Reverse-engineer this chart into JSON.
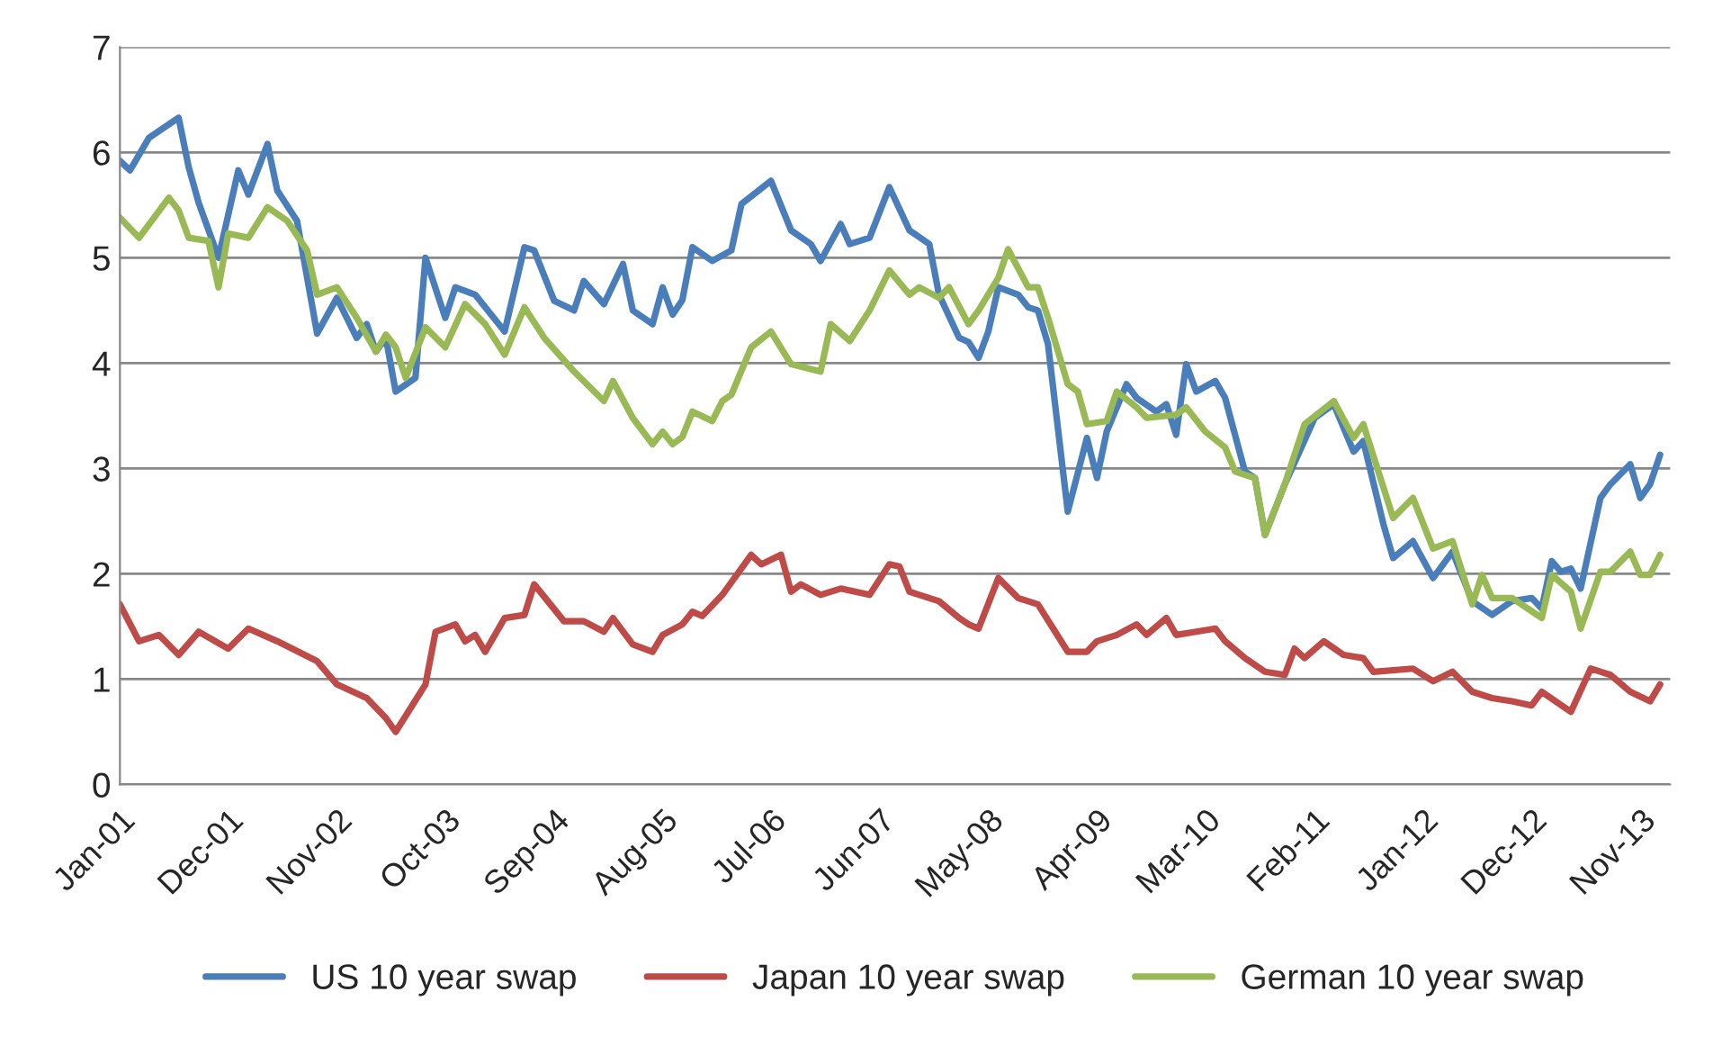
{
  "chart_data": {
    "type": "line",
    "xlim": [
      "2001-01",
      "2014-02"
    ],
    "xticks": [
      {
        "value": "2001-01",
        "label": "Jan-01"
      },
      {
        "value": "2001-12",
        "label": "Dec-01"
      },
      {
        "value": "2002-11",
        "label": "Nov-02"
      },
      {
        "value": "2003-10",
        "label": "Oct-03"
      },
      {
        "value": "2004-09",
        "label": "Sep-04"
      },
      {
        "value": "2005-08",
        "label": "Aug-05"
      },
      {
        "value": "2006-07",
        "label": "Jul-06"
      },
      {
        "value": "2007-06",
        "label": "Jun-07"
      },
      {
        "value": "2008-05",
        "label": "May-08"
      },
      {
        "value": "2009-04",
        "label": "Apr-09"
      },
      {
        "value": "2010-03",
        "label": "Mar-10"
      },
      {
        "value": "2011-02",
        "label": "Feb-11"
      },
      {
        "value": "2012-01",
        "label": "Jan-12"
      },
      {
        "value": "2012-12",
        "label": "Dec-12"
      },
      {
        "value": "2013-11",
        "label": "Nov-13"
      }
    ],
    "ylim": [
      0,
      7
    ],
    "yticks": [
      0,
      1,
      2,
      3,
      4,
      5,
      6,
      7
    ],
    "grid": "y",
    "legend": "bottom",
    "marker": "none",
    "line_style": "solid",
    "series": [
      {
        "name": "US 10 year swap",
        "color": "#4a7ebb",
        "x": [
          "2001-01",
          "2001-02",
          "2001-04",
          "2001-07",
          "2001-08",
          "2001-09",
          "2001-11",
          "2002-01",
          "2002-02",
          "2002-04",
          "2002-05",
          "2002-07",
          "2002-09",
          "2002-11",
          "2003-01",
          "2003-02",
          "2003-03",
          "2003-04",
          "2003-05",
          "2003-07",
          "2003-08",
          "2003-10",
          "2003-11",
          "2004-01",
          "2004-04",
          "2004-06",
          "2004-07",
          "2004-09",
          "2004-11",
          "2004-12",
          "2005-02",
          "2005-04",
          "2005-05",
          "2005-07",
          "2005-08",
          "2005-09",
          "2005-10",
          "2005-11",
          "2006-01",
          "2006-03",
          "2006-04",
          "2006-07",
          "2006-09",
          "2006-11",
          "2006-12",
          "2007-02",
          "2007-03",
          "2007-05",
          "2007-07",
          "2007-09",
          "2007-11",
          "2007-12",
          "2008-02",
          "2008-03",
          "2008-04",
          "2008-05",
          "2008-06",
          "2008-08",
          "2008-09",
          "2008-10",
          "2008-11",
          "2009-01",
          "2009-03",
          "2009-04",
          "2009-05",
          "2009-07",
          "2009-08",
          "2009-10",
          "2009-11",
          "2009-12",
          "2010-01",
          "2010-02",
          "2010-04",
          "2010-05",
          "2010-07",
          "2010-08",
          "2010-09",
          "2010-11",
          "2011-02",
          "2011-04",
          "2011-06",
          "2011-07",
          "2011-09",
          "2011-10",
          "2011-12",
          "2012-02",
          "2012-04",
          "2012-06",
          "2012-08",
          "2012-10",
          "2012-12",
          "2013-01",
          "2013-02",
          "2013-03",
          "2013-04",
          "2013-05",
          "2013-07",
          "2013-08",
          "2013-10",
          "2013-11",
          "2013-12",
          "2014-01"
        ],
        "values": [
          5.92,
          5.83,
          6.14,
          6.33,
          5.86,
          5.52,
          5.0,
          5.83,
          5.6,
          6.08,
          5.64,
          5.35,
          4.28,
          4.62,
          4.24,
          4.37,
          4.11,
          4.24,
          3.73,
          3.86,
          5.0,
          4.43,
          4.72,
          4.65,
          4.3,
          5.1,
          5.07,
          4.59,
          4.5,
          4.78,
          4.56,
          4.94,
          4.5,
          4.37,
          4.72,
          4.46,
          4.6,
          5.1,
          4.97,
          5.07,
          5.51,
          5.73,
          5.26,
          5.13,
          4.97,
          5.32,
          5.13,
          5.19,
          5.67,
          5.26,
          5.13,
          4.65,
          4.24,
          4.2,
          4.05,
          4.3,
          4.72,
          4.65,
          4.53,
          4.5,
          4.18,
          2.59,
          3.29,
          2.91,
          3.35,
          3.8,
          3.67,
          3.54,
          3.61,
          3.32,
          3.99,
          3.73,
          3.83,
          3.67,
          2.97,
          2.91,
          2.37,
          2.85,
          3.48,
          3.61,
          3.16,
          3.26,
          2.47,
          2.15,
          2.31,
          1.96,
          2.21,
          1.74,
          1.61,
          1.74,
          1.77,
          1.67,
          2.12,
          2.02,
          2.05,
          1.86,
          2.72,
          2.85,
          3.04,
          2.72,
          2.85,
          3.13
        ]
      },
      {
        "name": "Japan 10 year swap",
        "color": "#be4b48",
        "x": [
          "2001-01",
          "2001-03",
          "2001-05",
          "2001-07",
          "2001-09",
          "2001-12",
          "2002-02",
          "2002-05",
          "2002-09",
          "2002-11",
          "2003-02",
          "2003-04",
          "2003-05",
          "2003-08",
          "2003-09",
          "2003-11",
          "2003-12",
          "2004-01",
          "2004-02",
          "2004-04",
          "2004-06",
          "2004-07",
          "2004-10",
          "2004-12",
          "2005-02",
          "2005-03",
          "2005-05",
          "2005-07",
          "2005-08",
          "2005-10",
          "2005-11",
          "2005-12",
          "2006-02",
          "2006-05",
          "2006-06",
          "2006-08",
          "2006-09",
          "2006-10",
          "2006-12",
          "2007-02",
          "2007-05",
          "2007-07",
          "2007-08",
          "2007-09",
          "2007-12",
          "2008-02",
          "2008-03",
          "2008-04",
          "2008-06",
          "2008-08",
          "2008-10",
          "2009-01",
          "2009-03",
          "2009-04",
          "2009-06",
          "2009-08",
          "2009-09",
          "2009-11",
          "2009-12",
          "2010-02",
          "2010-04",
          "2010-05",
          "2010-07",
          "2010-09",
          "2010-11",
          "2010-12",
          "2011-01",
          "2011-03",
          "2011-05",
          "2011-07",
          "2011-08",
          "2011-12",
          "2012-02",
          "2012-04",
          "2012-06",
          "2012-08",
          "2012-10",
          "2012-12",
          "2013-01",
          "2013-04",
          "2013-06",
          "2013-08",
          "2013-10",
          "2013-12",
          "2014-01"
        ],
        "values": [
          1.71,
          1.36,
          1.42,
          1.23,
          1.45,
          1.29,
          1.48,
          1.36,
          1.17,
          0.95,
          0.82,
          0.63,
          0.5,
          0.95,
          1.45,
          1.52,
          1.36,
          1.42,
          1.26,
          1.58,
          1.61,
          1.9,
          1.55,
          1.55,
          1.45,
          1.58,
          1.33,
          1.26,
          1.42,
          1.52,
          1.64,
          1.6,
          1.8,
          2.18,
          2.09,
          2.18,
          1.83,
          1.9,
          1.8,
          1.86,
          1.8,
          2.09,
          2.07,
          1.83,
          1.74,
          1.58,
          1.52,
          1.48,
          1.96,
          1.77,
          1.71,
          1.26,
          1.26,
          1.36,
          1.42,
          1.52,
          1.42,
          1.58,
          1.42,
          1.45,
          1.48,
          1.36,
          1.2,
          1.07,
          1.04,
          1.29,
          1.2,
          1.36,
          1.23,
          1.2,
          1.07,
          1.1,
          0.98,
          1.07,
          0.88,
          0.82,
          0.79,
          0.75,
          0.88,
          0.69,
          1.1,
          1.04,
          0.88,
          0.79,
          0.95
        ]
      },
      {
        "name": "German 10 year swap",
        "color": "#98b954",
        "x": [
          "2001-01",
          "2001-03",
          "2001-06",
          "2001-07",
          "2001-08",
          "2001-10",
          "2001-11",
          "2001-12",
          "2002-02",
          "2002-04",
          "2002-06",
          "2002-08",
          "2002-09",
          "2002-11",
          "2003-01",
          "2003-03",
          "2003-04",
          "2003-05",
          "2003-06",
          "2003-08",
          "2003-10",
          "2003-12",
          "2004-02",
          "2004-04",
          "2004-06",
          "2004-08",
          "2004-11",
          "2005-02",
          "2005-03",
          "2005-05",
          "2005-07",
          "2005-08",
          "2005-09",
          "2005-10",
          "2005-11",
          "2006-01",
          "2006-02",
          "2006-03",
          "2006-05",
          "2006-07",
          "2006-09",
          "2006-12",
          "2007-01",
          "2007-03",
          "2007-05",
          "2007-07",
          "2007-09",
          "2007-10",
          "2007-12",
          "2008-01",
          "2008-03",
          "2008-04",
          "2008-06",
          "2008-07",
          "2008-09",
          "2008-10",
          "2008-11",
          "2009-01",
          "2009-02",
          "2009-03",
          "2009-05",
          "2009-06",
          "2009-08",
          "2009-09",
          "2009-12",
          "2010-01",
          "2010-03",
          "2010-05",
          "2010-06",
          "2010-08",
          "2010-09",
          "2010-11",
          "2011-01",
          "2011-04",
          "2011-06",
          "2011-07",
          "2011-10",
          "2011-12",
          "2012-02",
          "2012-04",
          "2012-06",
          "2012-07",
          "2012-08",
          "2012-10",
          "2013-01",
          "2013-02",
          "2013-04",
          "2013-05",
          "2013-07",
          "2013-08",
          "2013-10",
          "2013-11",
          "2013-12",
          "2014-01"
        ],
        "values": [
          5.38,
          5.19,
          5.57,
          5.45,
          5.19,
          5.16,
          4.72,
          5.23,
          5.19,
          5.48,
          5.35,
          5.07,
          4.65,
          4.72,
          4.43,
          4.11,
          4.27,
          4.15,
          3.86,
          4.34,
          4.15,
          4.56,
          4.37,
          4.08,
          4.53,
          4.24,
          3.92,
          3.64,
          3.83,
          3.48,
          3.23,
          3.35,
          3.23,
          3.3,
          3.54,
          3.45,
          3.64,
          3.7,
          4.15,
          4.3,
          3.99,
          3.92,
          4.37,
          4.21,
          4.5,
          4.88,
          4.65,
          4.72,
          4.62,
          4.72,
          4.37,
          4.5,
          4.81,
          5.08,
          4.72,
          4.72,
          4.43,
          3.8,
          3.73,
          3.42,
          3.45,
          3.73,
          3.58,
          3.48,
          3.51,
          3.58,
          3.35,
          3.2,
          2.97,
          2.91,
          2.37,
          2.85,
          3.42,
          3.64,
          3.29,
          3.42,
          2.53,
          2.72,
          2.24,
          2.31,
          1.71,
          1.99,
          1.77,
          1.77,
          1.58,
          1.99,
          1.83,
          1.48,
          2.02,
          2.02,
          2.21,
          1.99,
          1.99,
          2.18
        ]
      }
    ]
  }
}
